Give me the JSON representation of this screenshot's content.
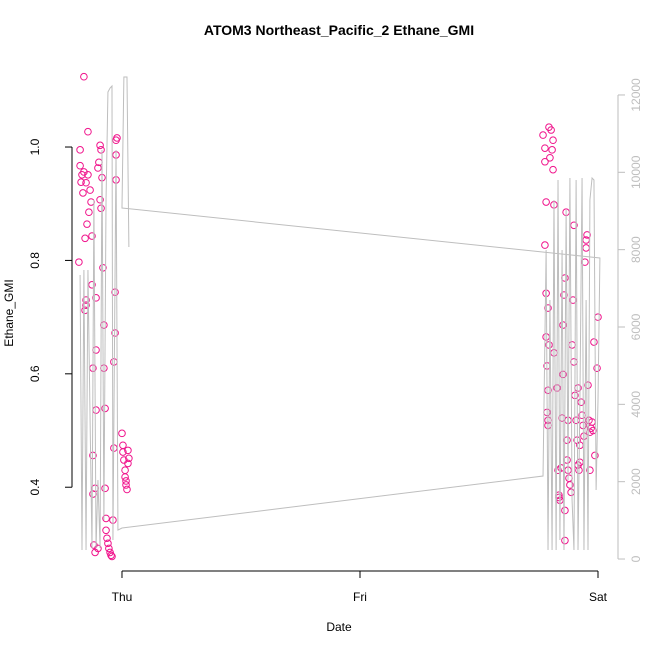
{
  "chart_data": {
    "type": "scatter",
    "title": "ATOM3 Northeast_Pacific_2 Ethane_GMI",
    "x_label": "Date",
    "y_label": "Ethane_GMI",
    "xlim": [
      -0.21,
      2.084
    ],
    "ylim": [
      0.254,
      1.157
    ],
    "y2lim": [
      -284,
      12956
    ],
    "xticks": [
      {
        "value": 0,
        "label": "Thu"
      },
      {
        "value": 1,
        "label": "Fri"
      },
      {
        "value": 2,
        "label": "Sat"
      }
    ],
    "yticks": [
      0.4,
      0.6,
      0.8,
      1.0
    ],
    "y2ticks": [
      0,
      2000,
      4000,
      6000,
      8000,
      10000,
      12000
    ],
    "y2_color": "#bebebe",
    "series": [
      {
        "type": "scatter",
        "color": "#f0148c",
        "x": [
          -0.16,
          -0.176,
          -0.176,
          -0.168,
          -0.172,
          -0.16,
          -0.164,
          -0.151,
          -0.143,
          -0.134,
          -0.13,
          -0.139,
          -0.147,
          -0.155,
          -0.126,
          -0.143,
          -0.181,
          -0.151,
          -0.155,
          -0.151,
          -0.126,
          -0.109,
          -0.109,
          -0.122,
          -0.109,
          -0.122,
          -0.113,
          -0.122,
          -0.118,
          -0.113,
          -0.101,
          -0.101,
          -0.097,
          -0.092,
          -0.088,
          -0.092,
          -0.088,
          -0.084,
          -0.08,
          -0.076,
          -0.076,
          -0.071,
          -0.071,
          -0.067,
          -0.067,
          -0.063,
          -0.059,
          -0.055,
          -0.05,
          -0.046,
          -0.042,
          -0.038,
          -0.034,
          -0.034,
          -0.029,
          -0.029,
          -0.025,
          -0.025,
          -0.021,
          -0.025,
          0,
          0.004,
          0.004,
          0.008,
          0.013,
          0.013,
          0.017,
          0.017,
          0.021,
          0.025,
          0.025,
          0.029,
          1.769,
          1.777,
          1.777,
          1.794,
          1.803,
          1.811,
          1.807,
          1.798,
          1.811,
          1.782,
          1.815,
          1.777,
          1.782,
          1.79,
          1.782,
          1.794,
          1.786,
          1.79,
          1.786,
          1.79,
          1.79,
          1.815,
          1.828,
          1.832,
          1.836,
          1.836,
          1.84,
          1.845,
          1.849,
          1.853,
          1.853,
          1.857,
          1.861,
          1.861,
          1.861,
          1.866,
          1.87,
          1.87,
          1.874,
          1.878,
          1.882,
          1.887,
          1.891,
          1.895,
          1.899,
          1.903,
          1.908,
          1.912,
          1.916,
          1.92,
          1.924,
          1.924,
          1.929,
          1.933,
          1.937,
          1.941,
          1.95,
          1.954,
          1.95,
          1.945,
          1.958,
          1.962,
          1.966,
          1.971,
          1.975,
          1.979,
          1.983,
          1.987,
          1.996,
          2.0,
          1.899,
          1.916,
          1.966,
          1.874
        ],
        "values": [
          1.124,
          0.995,
          0.967,
          0.951,
          0.938,
          0.956,
          0.919,
          0.937,
          0.951,
          0.924,
          0.903,
          0.885,
          0.864,
          0.839,
          0.843,
          1.027,
          0.797,
          0.73,
          0.712,
          0.721,
          0.757,
          0.734,
          0.642,
          0.61,
          0.536,
          0.456,
          0.398,
          0.388,
          0.298,
          0.285,
          0.292,
          0.963,
          0.973,
          1.003,
          0.995,
          0.907,
          0.892,
          0.946,
          0.787,
          0.686,
          0.61,
          0.539,
          0.398,
          0.345,
          0.324,
          0.31,
          0.301,
          0.292,
          0.285,
          0.28,
          0.278,
          0.342,
          0.469,
          0.621,
          0.672,
          0.744,
          0.942,
          0.986,
          1.016,
          1.012,
          0.495,
          0.474,
          0.462,
          0.448,
          0.43,
          0.418,
          0.411,
          0.404,
          0.396,
          0.465,
          0.442,
          0.451,
          1.021,
          0.974,
          0.998,
          1.035,
          1.03,
          1.012,
          0.995,
          0.981,
          0.96,
          0.903,
          0.898,
          0.827,
          0.742,
          0.716,
          0.665,
          0.651,
          0.614,
          0.571,
          0.532,
          0.518,
          0.509,
          0.637,
          0.575,
          0.43,
          0.386,
          0.382,
          0.377,
          0.434,
          0.522,
          0.599,
          0.686,
          0.739,
          0.769,
          0.359,
          0.306,
          0.885,
          0.483,
          0.448,
          0.43,
          0.416,
          0.404,
          0.391,
          0.651,
          0.73,
          0.621,
          0.562,
          0.518,
          0.483,
          0.439,
          0.43,
          0.444,
          0.474,
          0.55,
          0.527,
          0.509,
          0.49,
          0.836,
          0.845,
          0.822,
          0.797,
          0.58,
          0.518,
          0.497,
          0.504,
          0.515,
          0.5,
          0.656,
          0.456,
          0.61,
          0.7,
          0.862,
          0.575,
          0.43,
          0.518
        ]
      },
      {
        "type": "line",
        "axis": "y2",
        "color": "#bebebe",
        "x": [
          -0.176,
          -0.168,
          -0.16,
          -0.151,
          -0.143,
          -0.134,
          -0.126,
          -0.118,
          -0.109,
          -0.101,
          -0.092,
          -0.084,
          -0.076,
          -0.067,
          -0.059,
          -0.05,
          -0.042,
          -0.038,
          -0.034,
          -0.025,
          -0.017,
          0,
          1.769,
          1.782,
          1.79,
          1.798,
          1.807,
          1.815,
          1.824,
          1.832,
          1.84,
          1.849,
          1.857,
          1.866,
          1.874,
          1.882,
          1.891,
          1.899,
          1.908,
          1.916,
          1.924,
          1.933,
          1.941,
          1.95,
          1.958,
          1.966,
          1.975,
          1.983,
          1.992,
          2.0,
          2.008,
          0,
          0.008,
          0.021,
          0.029
        ],
        "values": [
          7344,
          233,
          7474,
          233,
          7474,
          3595,
          284,
          9284,
          284,
          2043,
          284,
          10577,
          1009,
          9284,
          12077,
          12180,
          12232,
          491,
          3595,
          10577,
          750,
          802,
          2146,
          7991,
          233,
          6698,
          233,
          9284,
          233,
          9801,
          491,
          7991,
          233,
          9025,
          2043,
          9853,
          1526,
          233,
          9801,
          233,
          4112,
          9853,
          233,
          6698,
          233,
          9284,
          9853,
          9801,
          1784,
          4112,
          7784,
          9077,
          12465,
          12465,
          8068
        ]
      }
    ]
  }
}
